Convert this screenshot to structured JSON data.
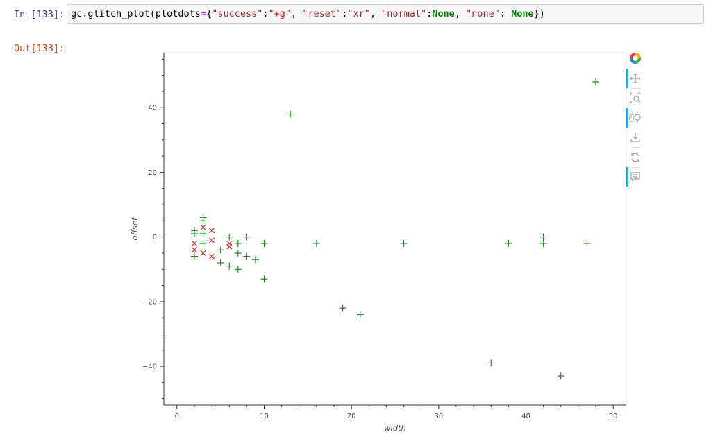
{
  "notebook": {
    "in_prompt": "In [133]:",
    "out_prompt": "Out[133]:",
    "code_tokens": [
      {
        "t": "gc.glitch_plot(plotdots",
        "c": ""
      },
      {
        "t": "=",
        "c": "op"
      },
      {
        "t": "{",
        "c": ""
      },
      {
        "t": "\"success\"",
        "c": "str"
      },
      {
        "t": ":",
        "c": ""
      },
      {
        "t": "\"+g\"",
        "c": "str"
      },
      {
        "t": ", ",
        "c": ""
      },
      {
        "t": "\"reset\"",
        "c": "str"
      },
      {
        "t": ":",
        "c": ""
      },
      {
        "t": "\"xr\"",
        "c": "str"
      },
      {
        "t": ", ",
        "c": ""
      },
      {
        "t": "\"normal\"",
        "c": "str"
      },
      {
        "t": ":",
        "c": ""
      },
      {
        "t": "None",
        "c": "kw"
      },
      {
        "t": ", ",
        "c": ""
      },
      {
        "t": "\"none\"",
        "c": "str"
      },
      {
        "t": ": ",
        "c": ""
      },
      {
        "t": "None",
        "c": "kw"
      },
      {
        "t": "})",
        "c": ""
      }
    ]
  },
  "toolbar": {
    "tools": [
      {
        "name": "bokeh-logo-icon",
        "active": false,
        "interactable": false
      },
      {
        "name": "pan-tool-icon",
        "active": true,
        "interactable": true
      },
      {
        "name": "box-zoom-tool-icon",
        "active": false,
        "interactable": true
      },
      {
        "name": "wheel-zoom-tool-icon",
        "active": true,
        "interactable": true
      },
      {
        "name": "save-tool-icon",
        "active": false,
        "interactable": true
      },
      {
        "name": "reset-tool-icon",
        "active": false,
        "interactable": true
      },
      {
        "name": "hover-tool-icon",
        "active": true,
        "interactable": true
      }
    ]
  },
  "chart_data": {
    "type": "scatter",
    "xlabel": "width",
    "ylabel": "offset",
    "xlim": [
      -1.5,
      51.5
    ],
    "ylim": [
      -52,
      57
    ],
    "x_ticks": [
      0,
      10,
      20,
      30,
      40,
      50
    ],
    "y_ticks": [
      -40,
      -20,
      0,
      20,
      40
    ],
    "x_tick_labels": [
      "0",
      "10",
      "20",
      "30",
      "40",
      "50"
    ],
    "y_tick_labels": [
      "−40",
      "−20",
      "0",
      "20",
      "40"
    ],
    "grid": false,
    "series": [
      {
        "marker": "+",
        "color": "#1f8a1f",
        "points": [
          [
            2,
            2
          ],
          [
            2,
            1
          ],
          [
            2,
            -6
          ],
          [
            3,
            6
          ],
          [
            3,
            5
          ],
          [
            3,
            1
          ],
          [
            3,
            -2
          ],
          [
            5,
            -4
          ],
          [
            5,
            -8
          ],
          [
            6,
            0
          ],
          [
            6,
            -9
          ],
          [
            7,
            -2
          ],
          [
            7,
            -5
          ],
          [
            7,
            -10
          ],
          [
            8,
            0
          ],
          [
            8,
            -6
          ],
          [
            9,
            -7
          ],
          [
            10,
            -2
          ],
          [
            10,
            -13
          ],
          [
            13,
            38
          ],
          [
            16,
            -2
          ],
          [
            19,
            -22
          ],
          [
            21,
            -24
          ],
          [
            26,
            -2
          ],
          [
            36,
            -39
          ],
          [
            38,
            -2
          ],
          [
            42,
            0
          ],
          [
            42,
            -2
          ],
          [
            44,
            -43
          ],
          [
            47,
            -2
          ],
          [
            48,
            48
          ]
        ]
      },
      {
        "marker": "x",
        "color": "#d62728",
        "points": [
          [
            2,
            -2
          ],
          [
            2,
            -4
          ],
          [
            3,
            3
          ],
          [
            3,
            -5
          ],
          [
            4,
            2
          ],
          [
            4,
            -1
          ],
          [
            4,
            -6
          ],
          [
            6,
            -2
          ],
          [
            6,
            -3
          ]
        ]
      }
    ]
  }
}
